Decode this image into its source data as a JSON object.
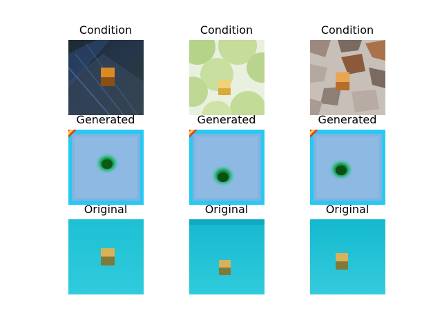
{
  "grid": {
    "rows": [
      {
        "label": "Condition",
        "panels": [
          {
            "title": "Condition",
            "content": "dark-blue-floor-with-orange-cube"
          },
          {
            "title": "Condition",
            "content": "green-circles-with-yellow-cube"
          },
          {
            "title": "Condition",
            "content": "stone-texture-with-orange-cube"
          }
        ]
      },
      {
        "label": "Generated",
        "panels": [
          {
            "title": "Generated",
            "content": "blue-field-with-green-blob"
          },
          {
            "title": "Generated",
            "content": "blue-field-with-green-blob"
          },
          {
            "title": "Generated",
            "content": "blue-field-with-green-blob"
          }
        ]
      },
      {
        "label": "Original",
        "panels": [
          {
            "title": "Original",
            "content": "cyan-field-with-cube"
          },
          {
            "title": "Original",
            "content": "cyan-field-with-cube"
          },
          {
            "title": "Original",
            "content": "cyan-field-with-cube"
          }
        ]
      }
    ]
  }
}
